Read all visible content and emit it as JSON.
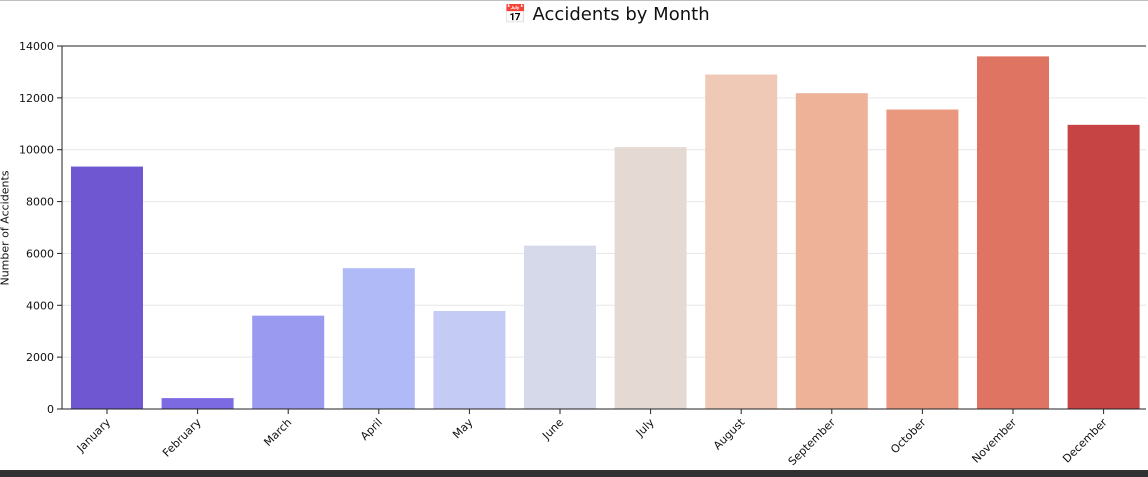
{
  "chart_data": {
    "type": "bar",
    "title": "📅 Accidents by Month",
    "xlabel": "",
    "ylabel": "Number of Accidents",
    "categories": [
      "January",
      "February",
      "March",
      "April",
      "May",
      "June",
      "July",
      "August",
      "September",
      "October",
      "November",
      "December"
    ],
    "values": [
      9350,
      420,
      3600,
      5430,
      3780,
      6300,
      10100,
      12900,
      12180,
      11550,
      13600,
      10960
    ],
    "colors": [
      "#7057d2",
      "#7b6ae2",
      "#999af0",
      "#afbaf6",
      "#c4cbf4",
      "#d5d9e9",
      "#e4d9d3",
      "#efc9b6",
      "#eeb298",
      "#e9987d",
      "#df7462",
      "#c64444"
    ],
    "ylim": [
      0,
      14000
    ],
    "yticks": [
      0,
      2000,
      4000,
      6000,
      8000,
      10000,
      12000,
      14000
    ],
    "grid": "horizontal"
  }
}
